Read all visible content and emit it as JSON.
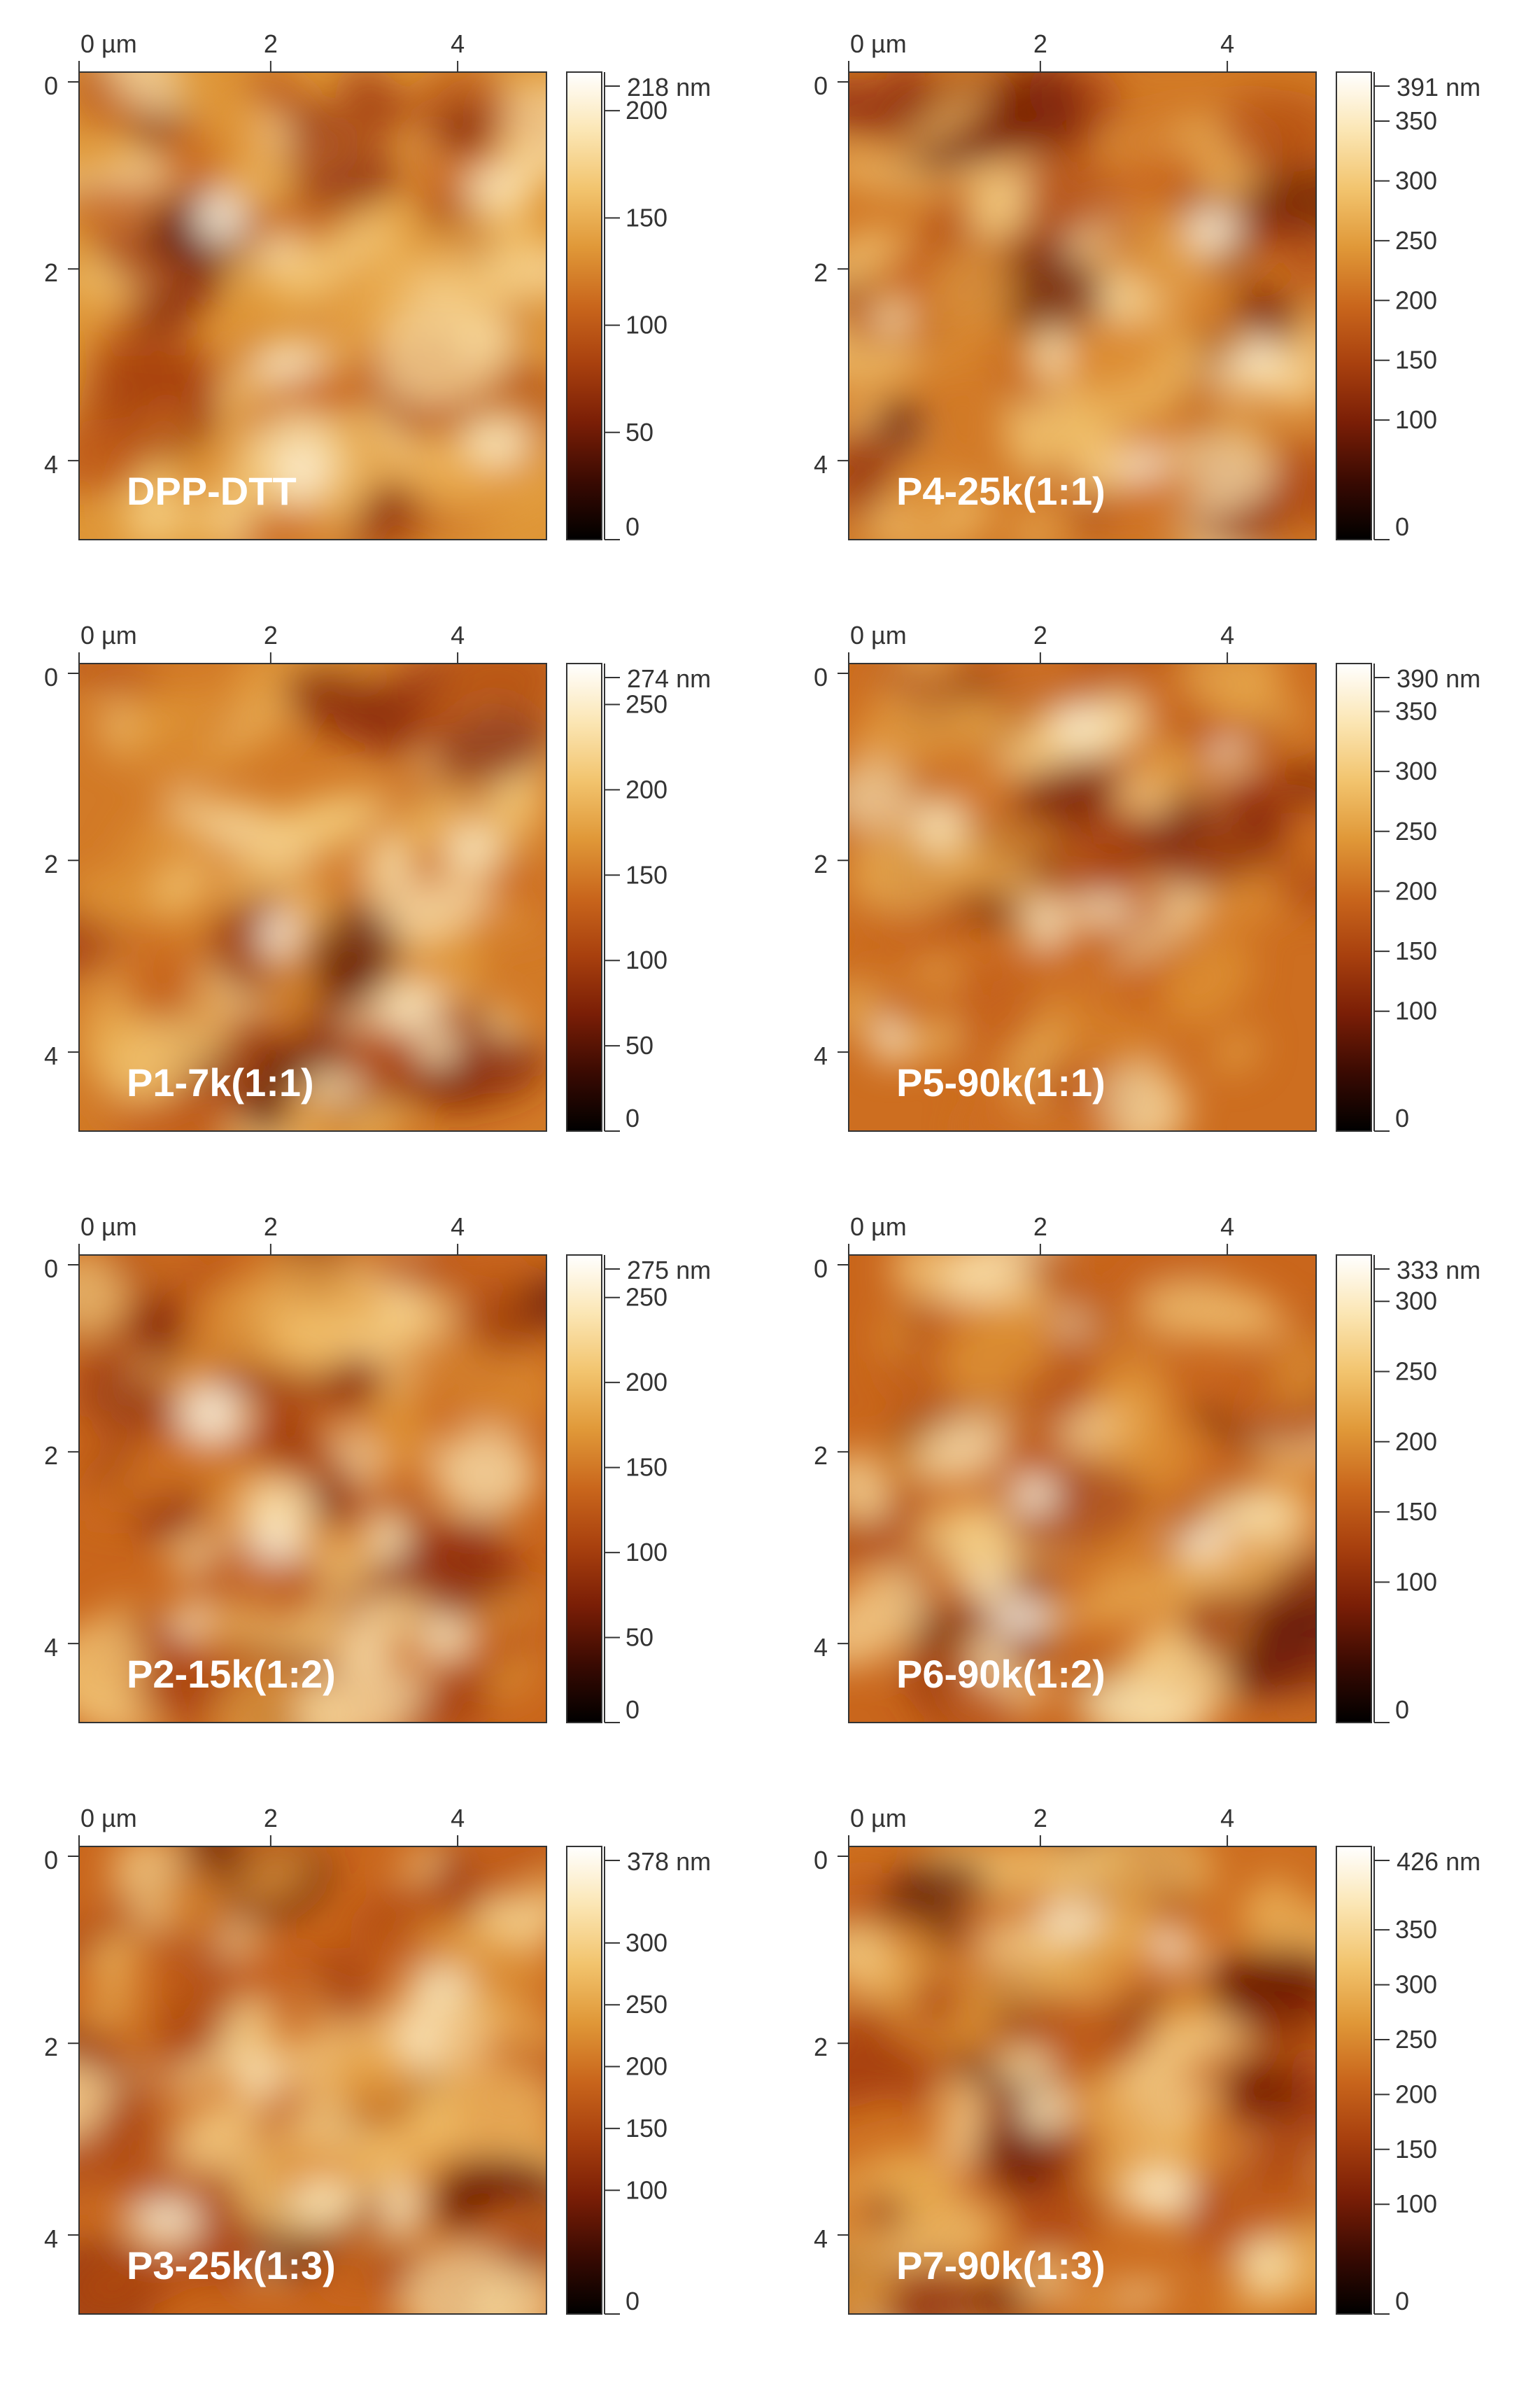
{
  "axis": {
    "origin_label": "0 µm",
    "top_ticks": [
      "2",
      "4"
    ],
    "left_ticks": [
      "0",
      "2",
      "4"
    ],
    "unit": "nm"
  },
  "colormap": [
    "#000000",
    "#3a0a02",
    "#7a1e06",
    "#a8400e",
    "#c9661c",
    "#e09838",
    "#f2c46e",
    "#fbe6b4",
    "#ffffff"
  ],
  "panels": [
    {
      "label": "DPP-DTT",
      "scale_max": "218 nm",
      "scale_ticks": [
        "200",
        "150",
        "100",
        "50",
        "0"
      ],
      "tick_values": [
        200,
        150,
        100,
        50,
        0
      ],
      "max_value": 218,
      "base_level": 0.62
    },
    {
      "label": "P4-25k(1:1)",
      "scale_max": "391 nm",
      "scale_ticks": [
        "350",
        "300",
        "250",
        "200",
        "150",
        "100",
        "0"
      ],
      "tick_values": [
        350,
        300,
        250,
        200,
        150,
        100,
        0
      ],
      "max_value": 391,
      "base_level": 0.55
    },
    {
      "label": "P1-7k(1:1)",
      "scale_max": "274 nm",
      "scale_ticks": [
        "250",
        "200",
        "150",
        "100",
        "50",
        "0"
      ],
      "tick_values": [
        250,
        200,
        150,
        100,
        50,
        0
      ],
      "max_value": 274,
      "base_level": 0.55
    },
    {
      "label": "P5-90k(1:1)",
      "scale_max": "390 nm",
      "scale_ticks": [
        "350",
        "300",
        "250",
        "200",
        "150",
        "100",
        "0"
      ],
      "tick_values": [
        350,
        300,
        250,
        200,
        150,
        100,
        0
      ],
      "max_value": 390,
      "base_level": 0.52
    },
    {
      "label": "P2-15k(1:2)",
      "scale_max": "275 nm",
      "scale_ticks": [
        "250",
        "200",
        "150",
        "100",
        "50",
        "0"
      ],
      "tick_values": [
        250,
        200,
        150,
        100,
        50,
        0
      ],
      "max_value": 275,
      "base_level": 0.5
    },
    {
      "label": "P6-90k(1:2)",
      "scale_max": "333 nm",
      "scale_ticks": [
        "300",
        "250",
        "200",
        "150",
        "100",
        "0"
      ],
      "tick_values": [
        300,
        250,
        200,
        150,
        100,
        0
      ],
      "max_value": 333,
      "base_level": 0.5
    },
    {
      "label": "P3-25k(1:3)",
      "scale_max": "378 nm",
      "scale_ticks": [
        "300",
        "250",
        "200",
        "150",
        "100",
        "0"
      ],
      "tick_values": [
        300,
        250,
        200,
        150,
        100,
        0
      ],
      "max_value": 378,
      "base_level": 0.5
    },
    {
      "label": "P7-90k(1:3)",
      "scale_max": "426 nm",
      "scale_ticks": [
        "350",
        "300",
        "250",
        "200",
        "150",
        "100",
        "0"
      ],
      "tick_values": [
        350,
        300,
        250,
        200,
        150,
        100,
        0
      ],
      "max_value": 426,
      "base_level": 0.52
    }
  ]
}
